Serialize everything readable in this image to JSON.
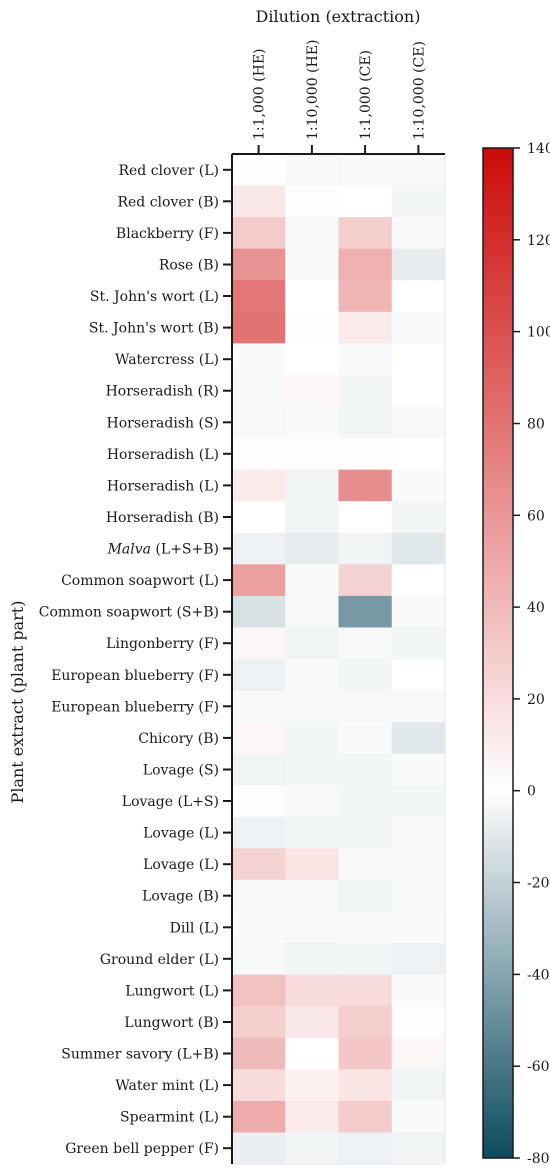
{
  "chart_data": {
    "type": "heatmap",
    "title": "Dilution (extraction)",
    "xlabel": "Dilution (extraction)",
    "ylabel": "Plant extract (plant part)",
    "columns": [
      "1:1,000 (HE)",
      "1:10,000 (HE)",
      "1:1,000 (CE)",
      "1:10,000 (CE)"
    ],
    "rows": [
      {
        "label": "Red clover (L)",
        "values": [
          1,
          -2,
          -3,
          -3
        ]
      },
      {
        "label": "Red clover (B)",
        "values": [
          14,
          -1,
          0,
          -4
        ]
      },
      {
        "label": "Blackberry (F)",
        "values": [
          30,
          -3,
          28,
          -3
        ]
      },
      {
        "label": "Rose (B)",
        "values": [
          62,
          -2,
          45,
          -8
        ]
      },
      {
        "label": "St. John's wort (L)",
        "values": [
          78,
          0,
          42,
          0
        ]
      },
      {
        "label": "St. John's wort (B)",
        "values": [
          80,
          1,
          12,
          -2
        ]
      },
      {
        "label": "Watercress (L)",
        "values": [
          -2,
          0,
          -2,
          0
        ]
      },
      {
        "label": "Horseradish (R)",
        "values": [
          -3,
          5,
          -4,
          0
        ]
      },
      {
        "label": "Horseradish (S)",
        "values": [
          -3,
          -2,
          -4,
          -3
        ]
      },
      {
        "label": "Horseradish (L)",
        "values": [
          2,
          -1,
          1,
          0
        ]
      },
      {
        "label": "Horseradish (L)",
        "values": [
          12,
          -5,
          65,
          -2
        ]
      },
      {
        "label": "Horseradish (B)",
        "values": [
          0,
          -5,
          0,
          -4
        ]
      },
      {
        "label": "Malva (L+S+B)",
        "italic_part": "Malva",
        "values": [
          -6,
          -8,
          -5,
          -10
        ]
      },
      {
        "label": "Common soapwort (L)",
        "values": [
          55,
          -2,
          25,
          0
        ]
      },
      {
        "label": "Common soapwort (S+B)",
        "values": [
          -13,
          -3,
          -45,
          -2
        ]
      },
      {
        "label": "Lingonberry (F)",
        "values": [
          5,
          -5,
          -3,
          -4
        ]
      },
      {
        "label": "European blueberry (F)",
        "values": [
          -6,
          -2,
          -4,
          0
        ]
      },
      {
        "label": "European blueberry (F)",
        "values": [
          -3,
          -3,
          -3,
          -3
        ]
      },
      {
        "label": "Chicory (B)",
        "values": [
          5,
          -4,
          -2,
          -10
        ]
      },
      {
        "label": "Lovage (S)",
        "values": [
          -5,
          -4,
          -4,
          -2
        ]
      },
      {
        "label": "Lovage (L+S)",
        "values": [
          -1,
          -3,
          -4,
          -4
        ]
      },
      {
        "label": "Lovage (L)",
        "values": [
          -6,
          -4,
          -4,
          -3
        ]
      },
      {
        "label": "Lovage (L)",
        "values": [
          25,
          15,
          -2,
          -3
        ]
      },
      {
        "label": "Lovage (B)",
        "values": [
          -3,
          -3,
          -5,
          -3
        ]
      },
      {
        "label": "Dill (L)",
        "values": [
          -2,
          -3,
          -3,
          -2
        ]
      },
      {
        "label": "Ground elder (L)",
        "values": [
          -3,
          -5,
          -4,
          -6
        ]
      },
      {
        "label": "Lungwort (L)",
        "values": [
          35,
          20,
          20,
          -2
        ]
      },
      {
        "label": "Lungwort (B)",
        "values": [
          28,
          14,
          28,
          2
        ]
      },
      {
        "label": "Summer savory (L+B)",
        "values": [
          40,
          0,
          32,
          5
        ]
      },
      {
        "label": "Water mint (L)",
        "values": [
          20,
          8,
          15,
          -5
        ]
      },
      {
        "label": "Spearmint (L)",
        "values": [
          48,
          12,
          30,
          -2
        ]
      },
      {
        "label": "Green bell pepper (F)",
        "values": [
          -7,
          -4,
          -6,
          -5
        ]
      }
    ],
    "colorbar": {
      "min": -80,
      "max": 140,
      "ticks": [
        140,
        120,
        100,
        80,
        60,
        40,
        20,
        0,
        -20,
        -40,
        -60,
        -80
      ],
      "colors": {
        "negative": "#0d4a5e",
        "zero": "#ffffff",
        "positive": "#cc0a0a"
      }
    }
  }
}
